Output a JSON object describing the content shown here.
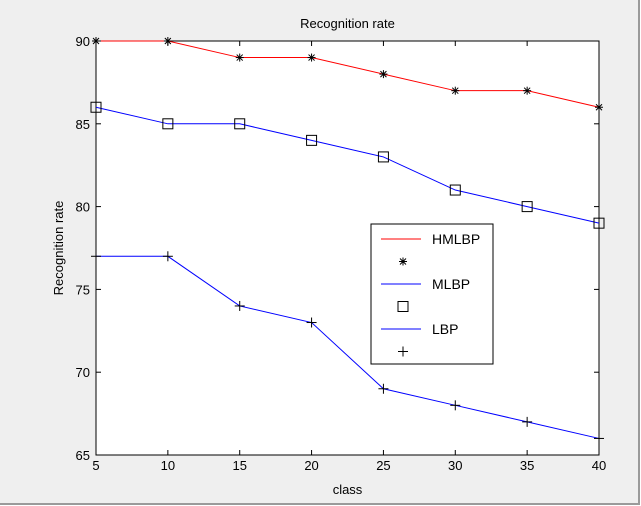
{
  "chart_data": {
    "type": "line",
    "title": "Recognition rate",
    "xlabel": "class",
    "ylabel": "Recognition rate",
    "xlim": [
      5,
      40
    ],
    "ylim": [
      65,
      90
    ],
    "xticks": [
      5,
      10,
      15,
      20,
      25,
      30,
      35,
      40
    ],
    "yticks": [
      65,
      70,
      75,
      80,
      85,
      90
    ],
    "grid": false,
    "legend_position": "center-right",
    "x": [
      5,
      10,
      15,
      20,
      25,
      30,
      35,
      40
    ],
    "series": [
      {
        "name": "HMLBP",
        "values": [
          90,
          90,
          89,
          89,
          88,
          87,
          87,
          86
        ],
        "color": "#ff0000",
        "marker": "asterisk"
      },
      {
        "name": "MLBP",
        "values": [
          86,
          85,
          85,
          84,
          83,
          81,
          80,
          79
        ],
        "color": "#0000ff",
        "marker": "square"
      },
      {
        "name": "LBP",
        "values": [
          77,
          77,
          74,
          73,
          69,
          68,
          67,
          66
        ],
        "color": "#0000ff",
        "marker": "plus"
      }
    ]
  }
}
